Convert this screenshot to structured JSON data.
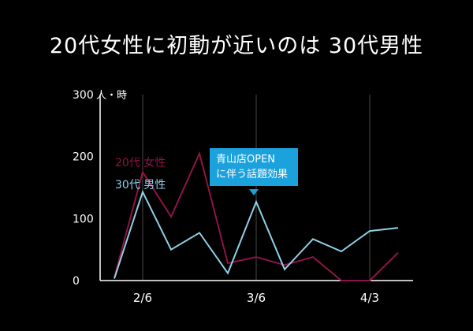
{
  "title": "20代女性に初動が近いのは 30代男性",
  "chart_data": {
    "type": "line",
    "title": "20代女性に初動が近いのは 30代男性",
    "ylabel_unit": "人・時",
    "ylim": [
      0,
      300
    ],
    "yticks": [
      0,
      100,
      200,
      300
    ],
    "x_tick_labels": [
      "2/6",
      "3/6",
      "4/3"
    ],
    "x_tick_index": [
      1,
      5,
      9
    ],
    "series": [
      {
        "name": "20代 女性",
        "color": "#8f1447",
        "values": [
          5,
          175,
          103,
          205,
          28,
          38,
          25,
          38,
          0,
          0,
          45
        ]
      },
      {
        "name": "30代 男性",
        "color": "#8ed0e6",
        "values": [
          3,
          143,
          50,
          77,
          12,
          127,
          18,
          67,
          47,
          80,
          85
        ]
      }
    ],
    "grid": "vertical",
    "annotation": {
      "lines": [
        "青山店OPEN",
        "に伴う話題効果"
      ],
      "color": "#1ba1dc"
    }
  }
}
